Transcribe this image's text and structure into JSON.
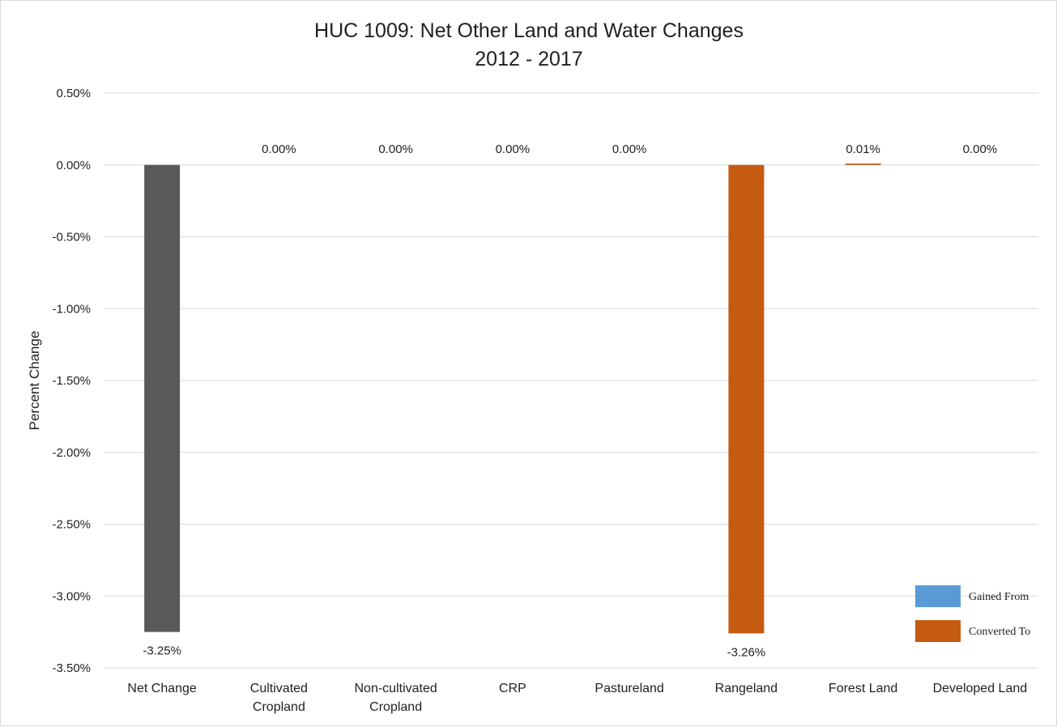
{
  "chart_data": {
    "type": "bar",
    "title": "HUC 1009: Net Other Land and Water Changes",
    "subtitle": "2012 - 2017",
    "xlabel": "",
    "ylabel": "Percent Change",
    "ylim": [
      -3.5,
      0.5
    ],
    "yticks": [
      0.5,
      0.0,
      -0.5,
      -1.0,
      -1.5,
      -2.0,
      -2.5,
      -3.0,
      -3.5
    ],
    "ytick_labels": [
      "0.50%",
      "0.00%",
      "-0.50%",
      "-1.00%",
      "-1.50%",
      "-2.00%",
      "-2.50%",
      "-3.00%",
      "-3.50%"
    ],
    "grid": true,
    "categories": [
      [
        "Net Change"
      ],
      [
        "Cultivated",
        "Cropland"
      ],
      [
        "Non-cultivated",
        "Cropland"
      ],
      [
        "CRP"
      ],
      [
        "Pastureland"
      ],
      [
        "Rangeland"
      ],
      [
        "Forest Land"
      ],
      [
        "Developed Land"
      ]
    ],
    "values": [
      -3.25,
      0.0,
      0.0,
      0.0,
      0.0,
      -3.26,
      0.01,
      0.0
    ],
    "data_labels": [
      "-3.25%",
      "0.00%",
      "0.00%",
      "0.00%",
      "0.00%",
      "-3.26%",
      "0.01%",
      "0.00%"
    ],
    "bar_colors": [
      "#595959",
      "#c55a11",
      "#c55a11",
      "#c55a11",
      "#c55a11",
      "#c55a11",
      "#c55a11",
      "#c55a11"
    ],
    "legend": {
      "position": "bottom-right",
      "entries": [
        {
          "name": "Gained From",
          "color": "#5b9bd5"
        },
        {
          "name": "Converted To",
          "color": "#c55a11"
        }
      ]
    }
  }
}
